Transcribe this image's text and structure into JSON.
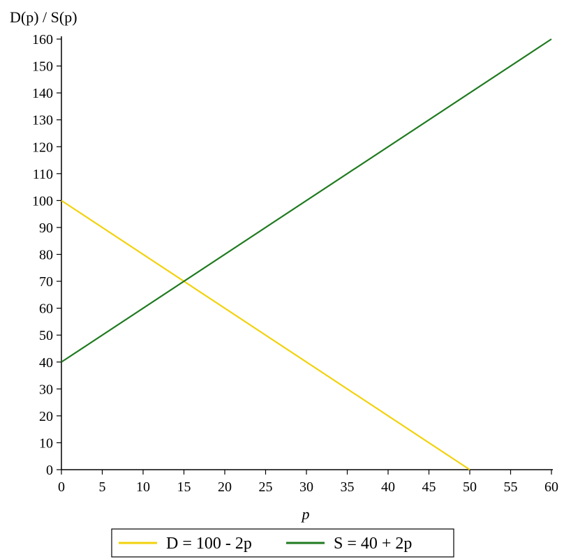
{
  "chart_data": {
    "type": "line",
    "ylabel": "D(p) / S(p)",
    "xlabel": "p",
    "xlim": [
      0,
      60
    ],
    "ylim": [
      0,
      160
    ],
    "xticks": [
      0,
      5,
      10,
      15,
      20,
      25,
      30,
      35,
      40,
      45,
      50,
      55,
      60
    ],
    "yticks": [
      0,
      10,
      20,
      30,
      40,
      50,
      60,
      70,
      80,
      90,
      100,
      110,
      120,
      130,
      140,
      150,
      160
    ],
    "grid": false,
    "legend_position": "bottom",
    "series": [
      {
        "name": "D = 100 - 2p",
        "color": "#f2d20c",
        "x": [
          0,
          50
        ],
        "y": [
          100,
          0
        ]
      },
      {
        "name": "S = 40 + 2p",
        "color": "#1f7a1f",
        "x": [
          0,
          60
        ],
        "y": [
          40,
          160
        ]
      }
    ]
  }
}
